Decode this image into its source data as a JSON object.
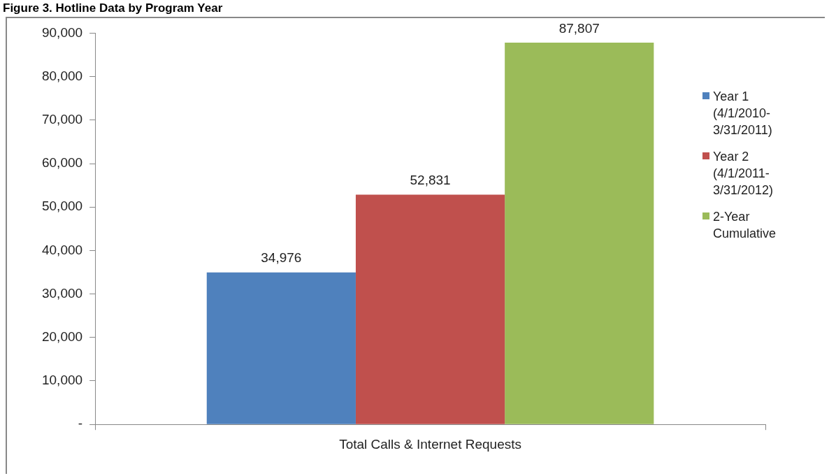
{
  "chart_data": {
    "type": "bar",
    "title": "Figure 3. Hotline Data by Program Year",
    "categories": [
      "Total Calls & Internet Requests"
    ],
    "series": [
      {
        "name": "Year 1 (4/1/2010-3/31/2011)",
        "color": "#4f81bd",
        "values": [
          34976
        ],
        "value_labels": [
          "34,976"
        ]
      },
      {
        "name": "Year 2 (4/1/2011-3/31/2012)",
        "color": "#c0504d",
        "values": [
          52831
        ],
        "value_labels": [
          "52,831"
        ]
      },
      {
        "name": "2-Year Cumulative",
        "color": "#9bbb59",
        "values": [
          87807
        ],
        "value_labels": [
          "87,807"
        ]
      }
    ],
    "ylim": [
      0,
      90000
    ],
    "yticks": [
      {
        "value": 0,
        "label": "-"
      },
      {
        "value": 10000,
        "label": "10,000"
      },
      {
        "value": 20000,
        "label": "20,000"
      },
      {
        "value": 30000,
        "label": "30,000"
      },
      {
        "value": 40000,
        "label": "40,000"
      },
      {
        "value": 50000,
        "label": "50,000"
      },
      {
        "value": 60000,
        "label": "60,000"
      },
      {
        "value": 70000,
        "label": "70,000"
      },
      {
        "value": 80000,
        "label": "80,000"
      },
      {
        "value": 90000,
        "label": "90,000"
      }
    ],
    "grid": false,
    "legend": "right"
  }
}
